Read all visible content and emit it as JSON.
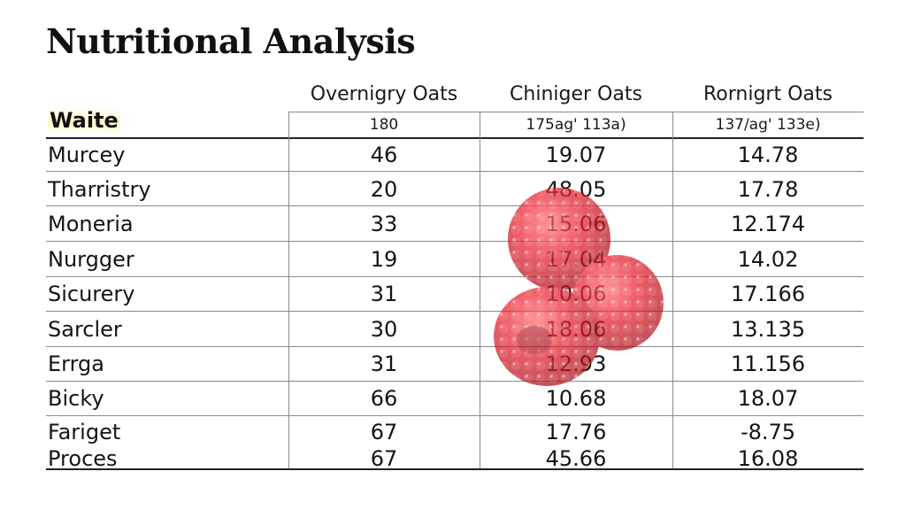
{
  "title": "Nutritional Analysis",
  "columns": [
    {
      "name": "Overnigry Oats",
      "subheader": "180"
    },
    {
      "name": "Chiniger Oats",
      "subheader": "175ag' 113a)"
    },
    {
      "name": "Rornigrt Oats",
      "subheader": "137/ag' 133e)"
    }
  ],
  "weight_label": "Waite",
  "rows": [
    {
      "label": "Murcey",
      "values": [
        "46",
        "19.07",
        "14.78"
      ]
    },
    {
      "label": "Tharristry",
      "values": [
        "20",
        "48.05",
        "17.78"
      ]
    },
    {
      "label": "Moneria",
      "values": [
        "33",
        "15.06",
        "12.174"
      ]
    },
    {
      "label": "Nurgger",
      "values": [
        "19",
        "17.04",
        "14.02"
      ]
    },
    {
      "label": "Sicurery",
      "values": [
        "31",
        "10.06",
        "17.166"
      ]
    },
    {
      "label": "Sarcler",
      "values": [
        "30",
        "18.06",
        "13.135"
      ]
    },
    {
      "label": "Errga",
      "values": [
        "31",
        "12.93",
        "11.156"
      ]
    },
    {
      "label": "Bicky",
      "values": [
        "66",
        "10.68",
        "18.07"
      ]
    },
    {
      "label": "Fariget",
      "values": [
        "67",
        "17.76",
        "-8.75"
      ]
    },
    {
      "label": "Proces",
      "values": [
        "67",
        "45.66",
        "16.08"
      ]
    }
  ],
  "decoration": {
    "name": "raspberries",
    "color": "#e8202c"
  }
}
